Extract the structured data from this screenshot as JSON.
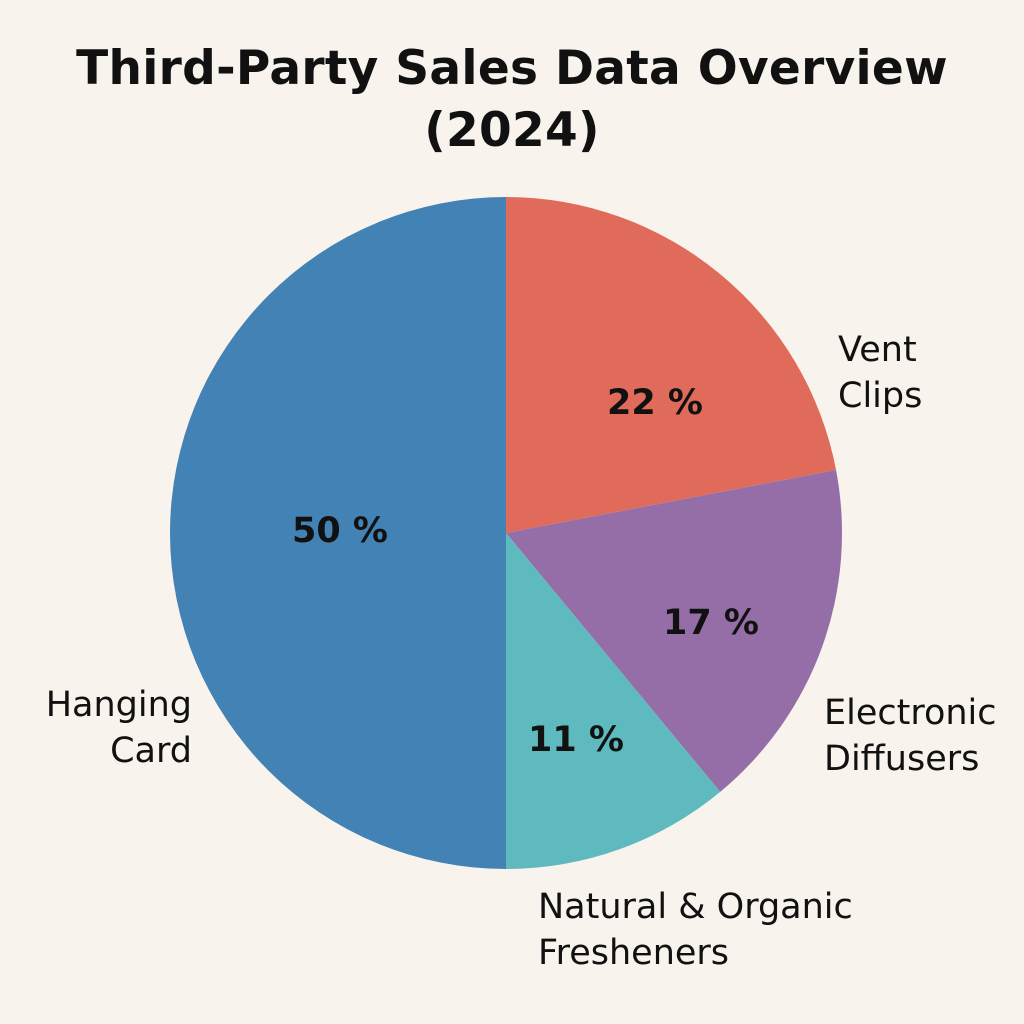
{
  "chart_data": {
    "type": "pie",
    "title_lines": [
      "Third-Party Sales Data Overview",
      "(2024)"
    ],
    "start_angle_deg": 0,
    "direction": "clockwise",
    "slices": [
      {
        "label_lines": [
          "Vent",
          "Clips"
        ],
        "value": 22,
        "value_label": "22 %",
        "color": "#e06b5a"
      },
      {
        "label_lines": [
          "Electronic",
          "Diffusers"
        ],
        "value": 17,
        "value_label": "17 %",
        "color": "#956ea8"
      },
      {
        "label_lines": [
          "Natural & Organic",
          "Fresheners"
        ],
        "value": 11,
        "value_label": "11 %",
        "color": "#5fbac0"
      },
      {
        "label_lines": [
          "Hanging",
          "Card"
        ],
        "value": 50,
        "value_label": "50 %",
        "color": "#4282b4"
      }
    ],
    "background": "#f8f3ec"
  }
}
